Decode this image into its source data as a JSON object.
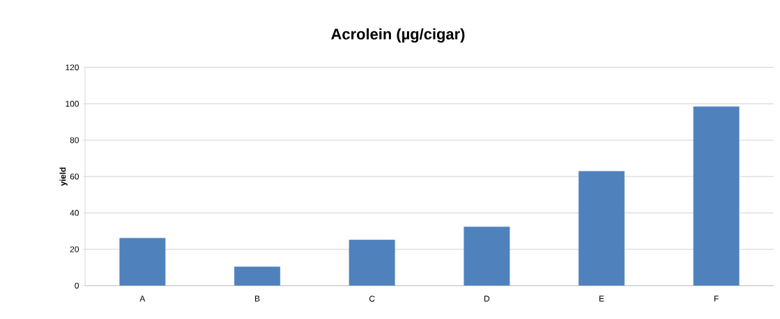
{
  "chart_data": {
    "type": "bar",
    "title": "Acrolein (µg/cigar)",
    "ylabel": "yield",
    "categories": [
      "A",
      "B",
      "C",
      "D",
      "E",
      "F"
    ],
    "values": [
      26.2,
      10.4,
      25.2,
      32.4,
      63,
      98.5
    ],
    "color": "#4f81bd",
    "ylim": [
      0,
      120
    ],
    "yticks": [
      0,
      20,
      40,
      60,
      80,
      100,
      120
    ],
    "grid": "y"
  }
}
